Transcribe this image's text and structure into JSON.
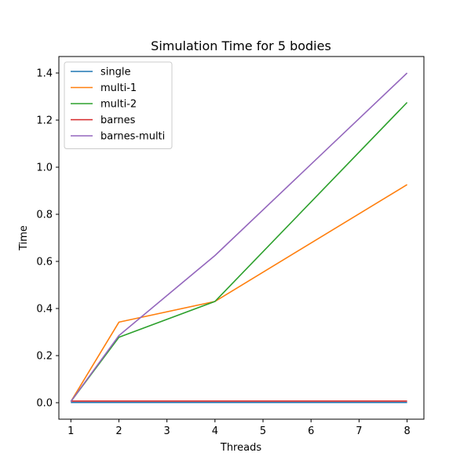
{
  "chart_data": {
    "type": "line",
    "title": "Simulation Time for 5 bodies",
    "xlabel": "Threads",
    "ylabel": "Time",
    "x": [
      1,
      2,
      4,
      8
    ],
    "xlim": [
      0.75,
      8.35
    ],
    "ylim": [
      -0.07,
      1.47
    ],
    "xticks": [
      1,
      2,
      3,
      4,
      5,
      6,
      7,
      8
    ],
    "yticks": [
      0.0,
      0.2,
      0.4,
      0.6,
      0.8,
      1.0,
      1.2,
      1.4
    ],
    "grid": false,
    "legend_position": "top-left",
    "series": [
      {
        "name": "single",
        "color": "#1f77b4",
        "values": [
          0.001,
          0.001,
          0.001,
          0.001
        ]
      },
      {
        "name": "multi-1",
        "color": "#ff7f0e",
        "values": [
          0.005,
          0.342,
          0.43,
          0.926
        ]
      },
      {
        "name": "multi-2",
        "color": "#2ca02c",
        "values": [
          0.005,
          0.278,
          0.43,
          1.275
        ]
      },
      {
        "name": "barnes",
        "color": "#d62728",
        "values": [
          0.007,
          0.007,
          0.007,
          0.007
        ]
      },
      {
        "name": "barnes-multi",
        "color": "#9467bd",
        "values": [
          0.005,
          0.285,
          0.625,
          1.4
        ]
      }
    ]
  }
}
